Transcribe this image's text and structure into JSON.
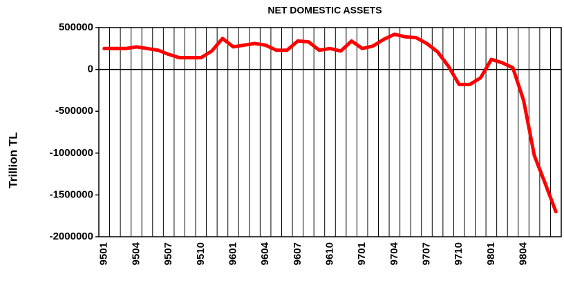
{
  "chart_data": {
    "type": "line",
    "title": "NET DOMESTIC ASSETS",
    "y_label": "Trillion TL",
    "categories": [
      "9501",
      null,
      null,
      "9504",
      null,
      null,
      "9507",
      null,
      null,
      "9510",
      null,
      null,
      "9601",
      null,
      null,
      "9604",
      null,
      null,
      "9607",
      null,
      null,
      "9610",
      null,
      null,
      "9701",
      null,
      null,
      "9704",
      null,
      null,
      "9707",
      null,
      null,
      "9710",
      null,
      null,
      "9801",
      null,
      null,
      "9804",
      null,
      null,
      null
    ],
    "series": [
      {
        "name": "Net domestic assets",
        "color": "#ff0000",
        "values": [
          250000,
          250000,
          250000,
          270000,
          250000,
          230000,
          180000,
          140000,
          140000,
          140000,
          220000,
          370000,
          270000,
          290000,
          310000,
          290000,
          230000,
          230000,
          340000,
          330000,
          230000,
          250000,
          220000,
          340000,
          250000,
          280000,
          360000,
          420000,
          390000,
          380000,
          310000,
          210000,
          40000,
          -180000,
          -180000,
          -100000,
          120000,
          80000,
          20000,
          -370000,
          -1030000,
          -1360000,
          -1700000
        ]
      }
    ],
    "ylim": [
      -2000000,
      500000
    ],
    "yticks": [
      -2000000,
      -1500000,
      -1000000,
      -500000,
      0,
      500000
    ],
    "grid": false,
    "category_grid": true
  }
}
